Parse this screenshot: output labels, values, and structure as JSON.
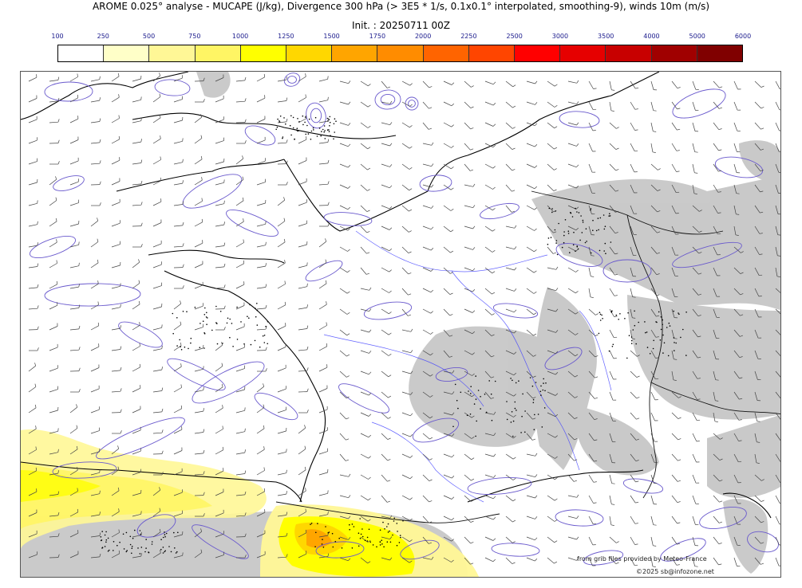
{
  "header": {
    "title": "AROME 0.025° analyse - MUCAPE (J/kg), Divergence 300 hPa (> 3E5 * 1/s, 0.1x0.1° interpolated, smoothing-9), winds 10m (m/s)",
    "init": "Init. : 20250711 00Z"
  },
  "colorbar": {
    "ticks": [
      "100",
      "250",
      "500",
      "750",
      "1000",
      "1250",
      "1500",
      "1750",
      "2000",
      "2250",
      "2500",
      "3000",
      "3500",
      "4000",
      "5000",
      "6000"
    ],
    "colors": [
      "#ffffff",
      "#ffffc8",
      "#fff796",
      "#fff564",
      "#ffff00",
      "#ffd700",
      "#ffa500",
      "#ff8c00",
      "#ff6400",
      "#ff4500",
      "#ff0000",
      "#e60000",
      "#c80000",
      "#a00000",
      "#800000",
      "#5a0000"
    ]
  },
  "map": {
    "land_fill": "#ffffff",
    "terrain_shade": "#b8b8b8",
    "coastline_color": "#000000",
    "divergence_contour_color": "#6a5acd",
    "river_color": "#3c3cff",
    "barb_color": "#333333"
  },
  "credits": {
    "line1": "from grib files provided by Meteo-France",
    "line2": "©2025 sb@infozone.net"
  }
}
